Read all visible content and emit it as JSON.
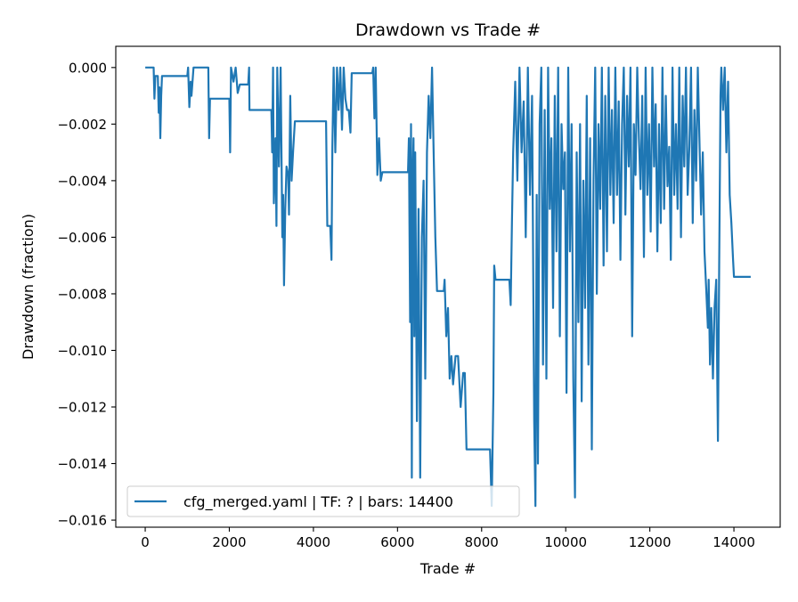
{
  "chart_data": {
    "type": "line",
    "title": "Drawdown vs Trade #",
    "xlabel": "Trade #",
    "ylabel": "Drawdown (fraction)",
    "xlim": [
      -700,
      15100
    ],
    "ylim": [
      -0.01625,
      0.00075
    ],
    "xticks": [
      0,
      2000,
      4000,
      6000,
      8000,
      10000,
      12000,
      14000
    ],
    "xtick_labels": [
      "0",
      "2000",
      "4000",
      "6000",
      "8000",
      "10000",
      "12000",
      "14000"
    ],
    "yticks": [
      0,
      -0.002,
      -0.004,
      -0.006,
      -0.008,
      -0.01,
      -0.012,
      -0.014,
      -0.016
    ],
    "ytick_labels": [
      "0.000",
      "−0.002",
      "−0.004",
      "−0.006",
      "−0.008",
      "−0.010",
      "−0.012",
      "−0.014",
      "−0.016"
    ],
    "legend_position": "lower-left",
    "grid": false,
    "series": [
      {
        "name": "cfg_merged.yaml | TF: ? | bars: 14400",
        "color": "#1f77b4",
        "points": [
          [
            0,
            0
          ],
          [
            200,
            0
          ],
          [
            220,
            -0.0011
          ],
          [
            240,
            -0.0003
          ],
          [
            300,
            -0.0003
          ],
          [
            320,
            -0.0016
          ],
          [
            340,
            -0.0007
          ],
          [
            360,
            -0.0025
          ],
          [
            380,
            -0.001
          ],
          [
            400,
            -0.0003
          ],
          [
            1000,
            -0.0003
          ],
          [
            1020,
            0
          ],
          [
            1050,
            -0.0014
          ],
          [
            1080,
            -0.0005
          ],
          [
            1100,
            -0.001
          ],
          [
            1150,
            0
          ],
          [
            1500,
            0
          ],
          [
            1520,
            -0.0025
          ],
          [
            1540,
            -0.0011
          ],
          [
            2000,
            -0.0011
          ],
          [
            2020,
            -0.003
          ],
          [
            2040,
            0
          ],
          [
            2100,
            -0.0005
          ],
          [
            2150,
            0
          ],
          [
            2200,
            -0.0009
          ],
          [
            2250,
            -0.0006
          ],
          [
            2450,
            -0.0006
          ],
          [
            2470,
            0
          ],
          [
            2480,
            -0.0015
          ],
          [
            3000,
            -0.0015
          ],
          [
            3020,
            -0.003
          ],
          [
            3040,
            0
          ],
          [
            3060,
            -0.0048
          ],
          [
            3100,
            -0.0025
          ],
          [
            3120,
            -0.0056
          ],
          [
            3140,
            0
          ],
          [
            3180,
            -0.0035
          ],
          [
            3220,
            0
          ],
          [
            3260,
            -0.006
          ],
          [
            3280,
            -0.0045
          ],
          [
            3300,
            -0.0077
          ],
          [
            3330,
            -0.005
          ],
          [
            3360,
            -0.0035
          ],
          [
            3400,
            -0.0038
          ],
          [
            3420,
            -0.0052
          ],
          [
            3450,
            -0.001
          ],
          [
            3480,
            -0.004
          ],
          [
            3520,
            -0.0029
          ],
          [
            3560,
            -0.0019
          ],
          [
            4300,
            -0.0019
          ],
          [
            4330,
            -0.0056
          ],
          [
            4400,
            -0.0056
          ],
          [
            4430,
            -0.0068
          ],
          [
            4450,
            -0.0028
          ],
          [
            4480,
            0
          ],
          [
            4520,
            -0.003
          ],
          [
            4560,
            0
          ],
          [
            4600,
            -0.0015
          ],
          [
            4640,
            0
          ],
          [
            4680,
            -0.0022
          ],
          [
            4720,
            0
          ],
          [
            4760,
            -0.0011
          ],
          [
            4800,
            -0.0015
          ],
          [
            4840,
            -0.0015
          ],
          [
            4880,
            -0.0023
          ],
          [
            4910,
            -0.0002
          ],
          [
            5400,
            -0.0002
          ],
          [
            5420,
            0
          ],
          [
            5450,
            -0.0018
          ],
          [
            5480,
            0
          ],
          [
            5520,
            -0.0038
          ],
          [
            5560,
            -0.0025
          ],
          [
            5600,
            -0.004
          ],
          [
            5640,
            -0.0037
          ],
          [
            6250,
            -0.0037
          ],
          [
            6270,
            -0.0025
          ],
          [
            6300,
            -0.009
          ],
          [
            6320,
            -0.002
          ],
          [
            6340,
            -0.0145
          ],
          [
            6360,
            -0.004
          ],
          [
            6380,
            -0.0025
          ],
          [
            6400,
            -0.0095
          ],
          [
            6420,
            -0.003
          ],
          [
            6460,
            -0.0125
          ],
          [
            6500,
            -0.005
          ],
          [
            6540,
            -0.0145
          ],
          [
            6580,
            -0.006
          ],
          [
            6620,
            -0.004
          ],
          [
            6660,
            -0.011
          ],
          [
            6700,
            -0.003
          ],
          [
            6740,
            -0.001
          ],
          [
            6780,
            -0.0025
          ],
          [
            6820,
            0
          ],
          [
            6860,
            -0.003
          ],
          [
            6900,
            -0.006
          ],
          [
            6940,
            -0.0079
          ],
          [
            7100,
            -0.0079
          ],
          [
            7120,
            -0.0075
          ],
          [
            7160,
            -0.0095
          ],
          [
            7200,
            -0.0085
          ],
          [
            7240,
            -0.011
          ],
          [
            7280,
            -0.0102
          ],
          [
            7320,
            -0.0112
          ],
          [
            7380,
            -0.0102
          ],
          [
            7440,
            -0.0102
          ],
          [
            7460,
            -0.0108
          ],
          [
            7500,
            -0.012
          ],
          [
            7560,
            -0.0108
          ],
          [
            7600,
            -0.0108
          ],
          [
            7640,
            -0.0135
          ],
          [
            8200,
            -0.0135
          ],
          [
            8240,
            -0.0155
          ],
          [
            8280,
            -0.0115
          ],
          [
            8300,
            -0.007
          ],
          [
            8330,
            -0.0075
          ],
          [
            8660,
            -0.0075
          ],
          [
            8690,
            -0.0084
          ],
          [
            8720,
            -0.0055
          ],
          [
            8750,
            -0.003
          ],
          [
            8800,
            -0.0005
          ],
          [
            8850,
            -0.004
          ],
          [
            8900,
            0
          ],
          [
            8950,
            -0.003
          ],
          [
            9000,
            -0.0012
          ],
          [
            9050,
            -0.006
          ],
          [
            9100,
            0
          ],
          [
            9150,
            -0.0045
          ],
          [
            9200,
            -0.001
          ],
          [
            9250,
            -0.0125
          ],
          [
            9280,
            -0.0155
          ],
          [
            9310,
            -0.0045
          ],
          [
            9340,
            -0.014
          ],
          [
            9380,
            -0.002
          ],
          [
            9420,
            0
          ],
          [
            9460,
            -0.0105
          ],
          [
            9500,
            -0.0015
          ],
          [
            9540,
            -0.011
          ],
          [
            9580,
            0
          ],
          [
            9620,
            -0.005
          ],
          [
            9660,
            -0.0025
          ],
          [
            9700,
            -0.0085
          ],
          [
            9740,
            -0.001
          ],
          [
            9780,
            -0.0065
          ],
          [
            9820,
            0
          ],
          [
            9860,
            -0.0095
          ],
          [
            9900,
            -0.002
          ],
          [
            9940,
            -0.0043
          ],
          [
            9980,
            -0.003
          ],
          [
            10020,
            -0.0115
          ],
          [
            10060,
            0
          ],
          [
            10100,
            -0.0065
          ],
          [
            10140,
            -0.002
          ],
          [
            10180,
            -0.011
          ],
          [
            10220,
            -0.0152
          ],
          [
            10260,
            -0.003
          ],
          [
            10300,
            -0.009
          ],
          [
            10340,
            -0.002
          ],
          [
            10380,
            -0.0118
          ],
          [
            10420,
            -0.004
          ],
          [
            10460,
            -0.0085
          ],
          [
            10500,
            -0.001
          ],
          [
            10540,
            -0.0105
          ],
          [
            10580,
            -0.0025
          ],
          [
            10620,
            -0.0135
          ],
          [
            10660,
            -0.004
          ],
          [
            10700,
            0
          ],
          [
            10740,
            -0.008
          ],
          [
            10780,
            -0.002
          ],
          [
            10820,
            -0.005
          ],
          [
            10860,
            0
          ],
          [
            10900,
            -0.007
          ],
          [
            10940,
            -0.001
          ],
          [
            10980,
            -0.0065
          ],
          [
            11020,
            0
          ],
          [
            11060,
            -0.0045
          ],
          [
            11100,
            -0.0015
          ],
          [
            11140,
            -0.0055
          ],
          [
            11180,
            0
          ],
          [
            11220,
            -0.0045
          ],
          [
            11260,
            -0.0012
          ],
          [
            11300,
            -0.0068
          ],
          [
            11340,
            -0.002
          ],
          [
            11380,
            0
          ],
          [
            11420,
            -0.0052
          ],
          [
            11460,
            -0.001
          ],
          [
            11500,
            -0.0035
          ],
          [
            11540,
            0
          ],
          [
            11580,
            -0.0095
          ],
          [
            11620,
            -0.002
          ],
          [
            11660,
            -0.0038
          ],
          [
            11700,
            0
          ],
          [
            11740,
            -0.0025
          ],
          [
            11780,
            -0.0043
          ],
          [
            11820,
            -0.001
          ],
          [
            11860,
            -0.0067
          ],
          [
            11900,
            0
          ],
          [
            11940,
            -0.0045
          ],
          [
            11980,
            -0.002
          ],
          [
            12020,
            -0.0058
          ],
          [
            12060,
            0
          ],
          [
            12100,
            -0.0035
          ],
          [
            12140,
            -0.0013
          ],
          [
            12180,
            -0.0065
          ],
          [
            12220,
            -0.002
          ],
          [
            12260,
            -0.0055
          ],
          [
            12300,
            0
          ],
          [
            12340,
            -0.005
          ],
          [
            12380,
            -0.001
          ],
          [
            12420,
            -0.0042
          ],
          [
            12460,
            -0.0028
          ],
          [
            12500,
            -0.0068
          ],
          [
            12540,
            0
          ],
          [
            12580,
            -0.0045
          ],
          [
            12620,
            -0.002
          ],
          [
            12660,
            -0.005
          ],
          [
            12700,
            0
          ],
          [
            12740,
            -0.006
          ],
          [
            12780,
            -0.001
          ],
          [
            12820,
            -0.0035
          ],
          [
            12860,
            0
          ],
          [
            12900,
            -0.0045
          ],
          [
            12940,
            -0.0028
          ],
          [
            12980,
            0
          ],
          [
            13020,
            -0.0055
          ],
          [
            13060,
            -0.0015
          ],
          [
            13100,
            -0.004
          ],
          [
            13140,
            0
          ],
          [
            13180,
            -0.0025
          ],
          [
            13220,
            -0.0052
          ],
          [
            13260,
            -0.003
          ],
          [
            13300,
            -0.0065
          ],
          [
            13340,
            -0.0078
          ],
          [
            13380,
            -0.0092
          ],
          [
            13400,
            -0.0075
          ],
          [
            13430,
            -0.0105
          ],
          [
            13460,
            -0.0085
          ],
          [
            13500,
            -0.011
          ],
          [
            13540,
            -0.0085
          ],
          [
            13580,
            -0.0075
          ],
          [
            13620,
            -0.0132
          ],
          [
            13650,
            -0.007
          ],
          [
            13680,
            -0.001
          ],
          [
            13700,
            0
          ],
          [
            13740,
            -0.0015
          ],
          [
            13780,
            0
          ],
          [
            13820,
            -0.003
          ],
          [
            13860,
            -0.0005
          ],
          [
            13900,
            -0.0045
          ],
          [
            13940,
            -0.0055
          ],
          [
            13980,
            -0.0068
          ],
          [
            14000,
            -0.0074
          ],
          [
            14400,
            -0.0074
          ]
        ]
      }
    ]
  }
}
